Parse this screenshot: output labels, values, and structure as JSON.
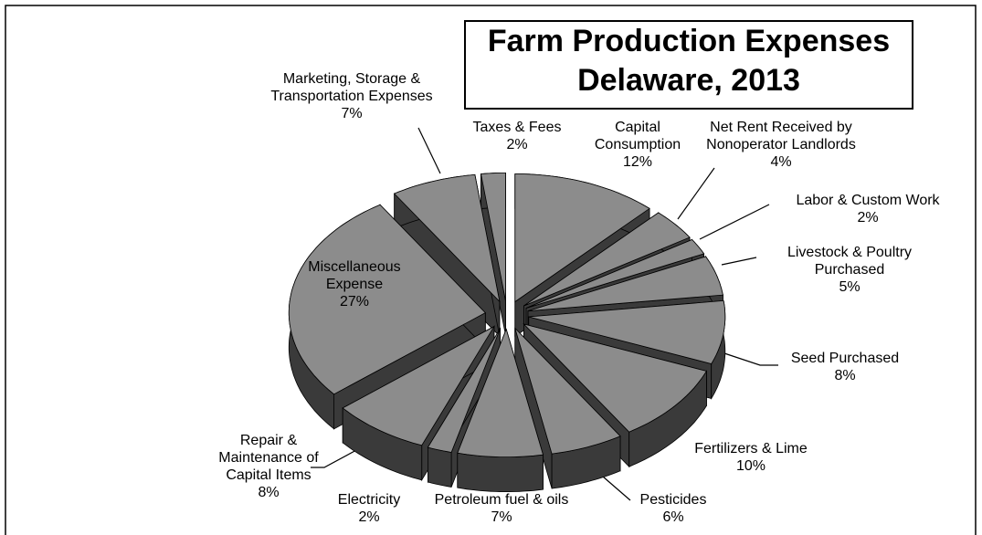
{
  "chart_data": {
    "type": "pie",
    "title": "Farm Production Expenses",
    "subtitle": "Delaware, 2013",
    "categories": [
      "Capital Consumption",
      "Net Rent Received by Nonoperator Landlords",
      "Labor & Custom Work",
      "Livestock & Poultry Purchased",
      "Seed Purchased",
      "Fertilizers & Lime",
      "Pesticides",
      "Petroleum fuel & oils",
      "Electricity",
      "Repair & Maintenance of Capital Items",
      "Miscellaneous Expense",
      "Marketing, Storage & Transportation Expenses",
      "Taxes & Fees"
    ],
    "values": [
      12,
      4,
      2,
      5,
      8,
      10,
      6,
      7,
      2,
      8,
      27,
      7,
      2
    ],
    "value_labels": [
      "12%",
      "4%",
      "2%",
      "5%",
      "8%",
      "10%",
      "6%",
      "7%",
      "2%",
      "8%",
      "27%",
      "7%",
      "2%"
    ],
    "color": "#8c8c8c",
    "side_color": "#3a3a3a"
  }
}
